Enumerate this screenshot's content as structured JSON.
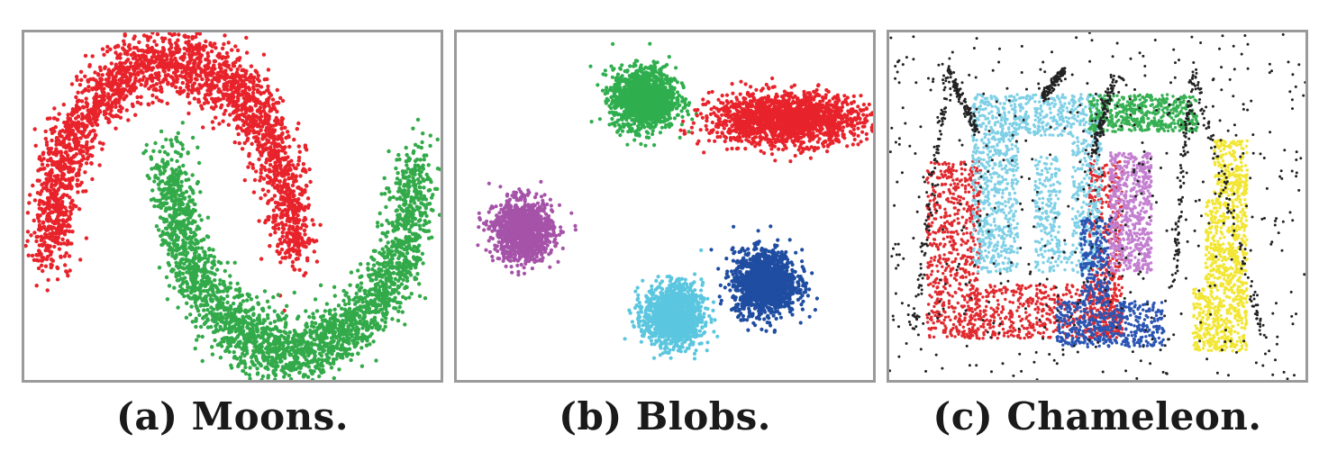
{
  "figure": {
    "captions": [
      "(a) Moons.",
      "(b) Blobs.",
      "(c) Chameleon."
    ]
  },
  "chart_data": [
    {
      "type": "scatter",
      "title": "(a) Moons.",
      "xlim": [
        -1.2,
        2.2
      ],
      "ylim": [
        -0.65,
        1.15
      ],
      "grid": false,
      "series": [
        {
          "color": "#e8232b",
          "shape": "upper-moon",
          "center": [
            0.0,
            0.0
          ],
          "radius": 1.0,
          "angle_range": [
            0,
            180
          ],
          "noise": 0.09,
          "n": 2600
        },
        {
          "color": "#33aa4a",
          "shape": "lower-moon",
          "center": [
            1.0,
            0.5
          ],
          "radius": 1.0,
          "angle_range": [
            180,
            360
          ],
          "noise": 0.09,
          "n": 2600
        }
      ]
    },
    {
      "type": "scatter",
      "title": "(b) Blobs.",
      "xlim": [
        0,
        10
      ],
      "ylim": [
        0,
        8.4
      ],
      "grid": false,
      "series": [
        {
          "color": "#2fae4e",
          "shape": "blob",
          "center": [
            4.5,
            6.8
          ],
          "spread": [
            0.38,
            0.37
          ],
          "n": 1400
        },
        {
          "color": "#e8232b",
          "shape": "blob",
          "center": [
            7.95,
            6.3
          ],
          "spread": [
            0.9,
            0.3
          ],
          "n": 1800
        },
        {
          "color": "#a553a8",
          "shape": "blob",
          "center": [
            1.6,
            3.6
          ],
          "spread": [
            0.35,
            0.36
          ],
          "n": 1200
        },
        {
          "color": "#5bc6df",
          "shape": "blob",
          "center": [
            5.2,
            1.55
          ],
          "spread": [
            0.35,
            0.37
          ],
          "n": 1300
        },
        {
          "color": "#1f4da1",
          "shape": "blob",
          "center": [
            7.4,
            2.35
          ],
          "spread": [
            0.38,
            0.38
          ],
          "n": 1400
        }
      ]
    },
    {
      "type": "scatter",
      "title": "(c) Chameleon.",
      "xlim": [
        0,
        10
      ],
      "ylim": [
        0,
        8.4
      ],
      "grid": false,
      "series": [
        {
          "color": "#e02a2f",
          "shape": "u-shape",
          "n": 1500
        },
        {
          "color": "#7fd0e6",
          "shape": "hook",
          "n": 1400
        },
        {
          "color": "#36b053",
          "shape": "bar",
          "n": 500
        },
        {
          "color": "#c37fd0",
          "shape": "block",
          "n": 600
        },
        {
          "color": "#2b55b3",
          "shape": "l-shape",
          "n": 700
        },
        {
          "color": "#f2e633",
          "shape": "blob-column",
          "n": 1000
        },
        {
          "color": "#222222",
          "shape": "noise",
          "n": 1100
        }
      ]
    }
  ]
}
